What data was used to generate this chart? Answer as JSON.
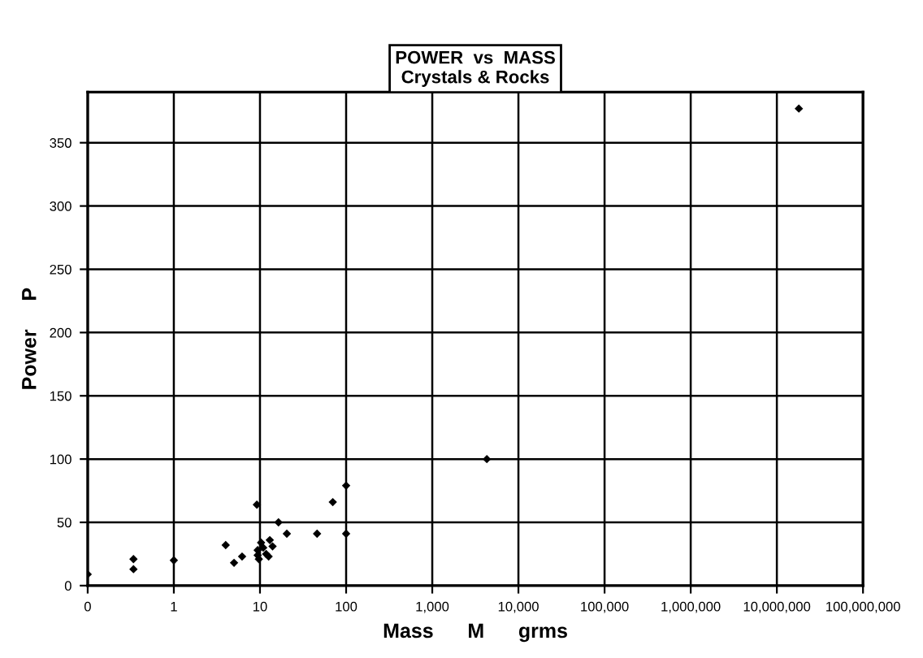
{
  "chart_data": {
    "type": "scatter",
    "title": "POWER  vs  MASS\nCrystals & Rocks",
    "xlabel": "Mass      M      grms",
    "ylabel": "Power     P",
    "x": [
      0.1,
      0.34,
      0.34,
      1,
      4,
      5,
      6.2,
      9.2,
      9.4,
      9.4,
      9.7,
      10.3,
      10.9,
      11.8,
      12.6,
      13,
      14,
      16.4,
      20.5,
      46,
      70,
      100,
      100,
      4300,
      18000000
    ],
    "values": [
      9,
      21,
      13,
      20,
      32,
      18,
      23,
      64,
      28,
      24,
      21,
      34,
      30,
      25,
      23,
      36,
      31,
      50,
      41,
      41,
      66,
      79,
      41,
      100,
      377
    ],
    "color": "#000000",
    "marker": "diamond",
    "log": "x",
    "grid": true,
    "legend": false,
    "xlim": [
      0.1,
      100000000
    ],
    "xticks": [
      {
        "value": 0.1,
        "label": "0"
      },
      1,
      10,
      100,
      {
        "value": 1000,
        "label": "1,000"
      },
      {
        "value": 10000,
        "label": "10,000"
      },
      {
        "value": 100000,
        "label": "100,000"
      },
      {
        "value": 1000000,
        "label": "1,000,000"
      },
      {
        "value": 10000000,
        "label": "10,000,000"
      },
      {
        "value": 100000000,
        "label": "100,000,000"
      }
    ],
    "ylim": [
      0,
      390
    ],
    "yticks": [
      0,
      50,
      100,
      150,
      200,
      250,
      300,
      350
    ]
  }
}
